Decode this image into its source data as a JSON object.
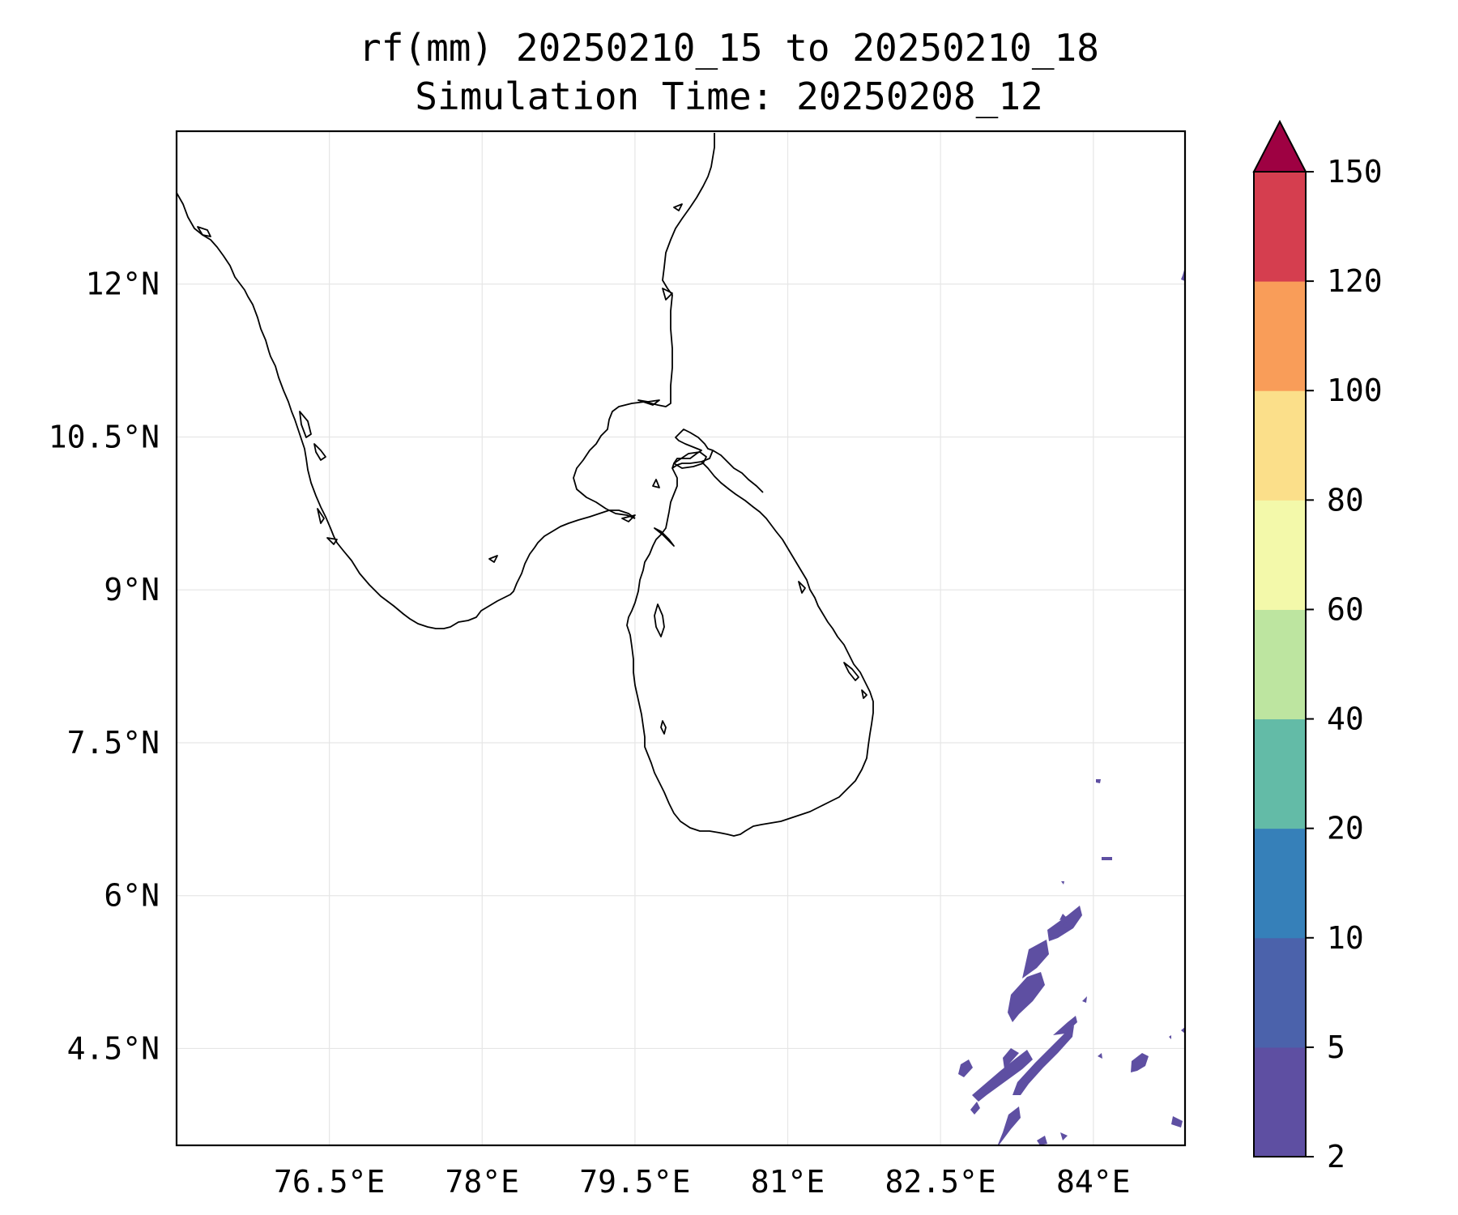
{
  "title": "rf(mm) 20250210_15 to 20250210_18",
  "subtitle": "Simulation Time: 20250208_12",
  "map": {
    "lon_range": [
      75.0,
      84.9
    ],
    "lat_range": [
      3.55,
      13.5
    ],
    "lon_ticks": [
      76.5,
      78,
      79.5,
      81,
      82.5,
      84
    ],
    "lon_tick_labels": [
      "76.5°E",
      "78°E",
      "79.5°E",
      "81°E",
      "82.5°E",
      "84°E"
    ],
    "lat_ticks": [
      12,
      10.5,
      9,
      7.5,
      6,
      4.5
    ],
    "lat_tick_labels": [
      "12°N",
      "10.5°N",
      "9°N",
      "7.5°N",
      "6°N",
      "4.5°N"
    ],
    "gridlines": true,
    "coastline_color": "#000000"
  },
  "colorbar": {
    "levels": [
      2,
      5,
      10,
      20,
      40,
      60,
      80,
      100,
      120,
      150
    ],
    "tick_labels": [
      "2",
      "5",
      "10",
      "20",
      "40",
      "60",
      "80",
      "100",
      "120",
      "150"
    ],
    "colors": [
      "#5e4fa2",
      "#4b62ab",
      "#3680b9",
      "#63bba7",
      "#bde5a0",
      "#f3f9aa",
      "#fbdf8a",
      "#f99d59",
      "#d53e4f"
    ],
    "extend_color": "#9e0142",
    "extend": "max"
  },
  "rain_color": "#5e4fa2"
}
